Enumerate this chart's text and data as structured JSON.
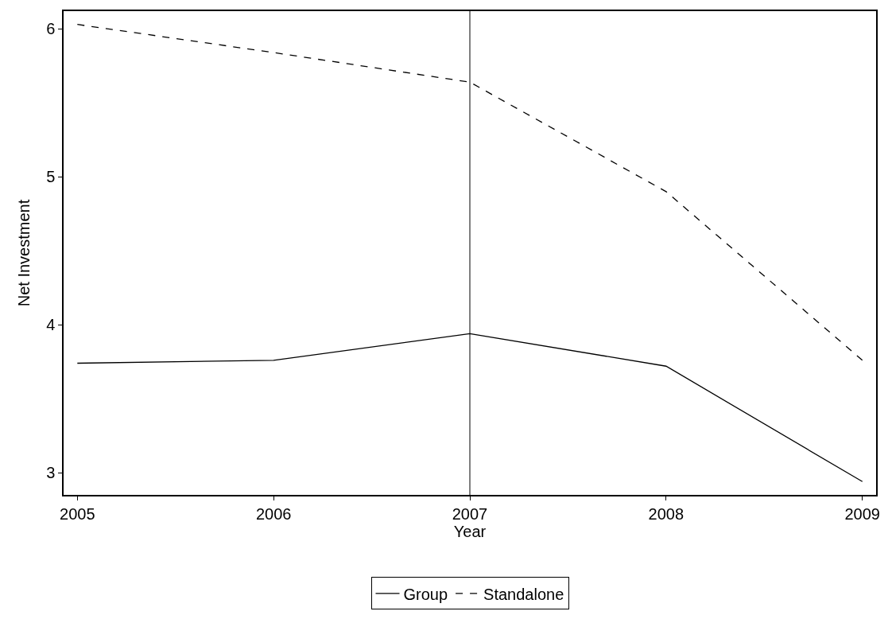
{
  "chart_data": {
    "type": "line",
    "xlabel": "Year",
    "ylabel": "Net Investment",
    "x": [
      2005,
      2006,
      2007,
      2008,
      2009
    ],
    "series": [
      {
        "name": "Group",
        "color": "#000000",
        "values": [
          3.74,
          3.76,
          3.94,
          3.72,
          2.94
        ],
        "line_style": "solid"
      },
      {
        "name": "Standalone",
        "color": "#000000",
        "values": [
          6.03,
          5.84,
          5.64,
          4.9,
          3.76
        ],
        "line_style": "dashed"
      }
    ],
    "xlim": [
      2004.93,
      2009.07
    ],
    "xticks": [
      2005,
      2006,
      2007,
      2008,
      2009
    ],
    "ylim": [
      2.85,
      6.12
    ],
    "yticks": [
      3,
      4,
      5,
      6
    ],
    "ref_lines": [
      {
        "axis": "x",
        "value": 2007,
        "color": "#000000"
      }
    ],
    "legend": "bottom",
    "marker": "none"
  }
}
